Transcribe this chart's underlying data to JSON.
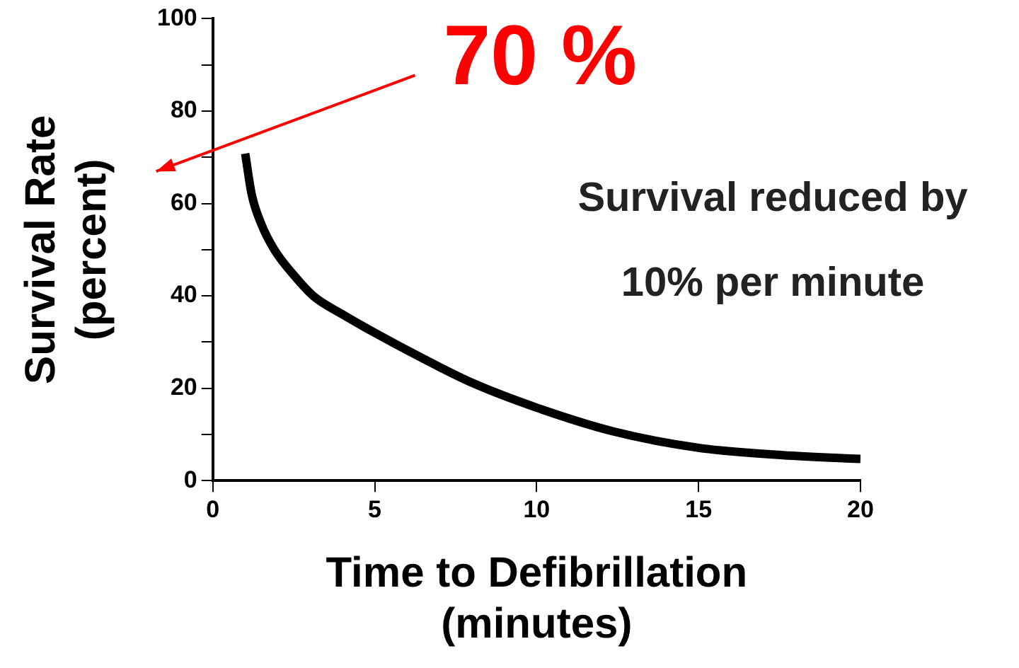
{
  "chart_data": {
    "type": "line",
    "xlabel": "Time to Defibrillation\n(minutes)",
    "ylabel": "Survival Rate\n(percent)",
    "annotations": [
      {
        "text": "70 %",
        "x": 1,
        "y": 70
      },
      "Survival reduced by\n10% per minute"
    ],
    "series": [
      {
        "color": "#000000",
        "x": [
          1,
          1.2,
          1.5,
          1.9,
          2.5,
          3.1,
          4,
          5,
          6.5,
          8,
          10,
          12.4,
          15,
          17.6,
          20
        ],
        "values": [
          70.8,
          62,
          55.5,
          50,
          44.5,
          40,
          36,
          32,
          26.4,
          21.2,
          15.8,
          10.6,
          7.1,
          5.5,
          4.7
        ]
      }
    ],
    "xlim": [
      0,
      20
    ],
    "xticks": [
      0,
      5,
      10,
      15,
      20
    ],
    "ylim": [
      0,
      100
    ],
    "yticks": [
      0,
      {
        "value": 10,
        "label": null
      },
      20,
      {
        "value": 30,
        "label": null
      },
      40,
      {
        "value": 50,
        "label": null
      },
      60,
      {
        "value": 70,
        "label": null
      },
      80,
      {
        "value": 90,
        "label": null
      },
      100
    ],
    "grid": false,
    "legend": false,
    "marker": "none",
    "line_style": "solid"
  }
}
